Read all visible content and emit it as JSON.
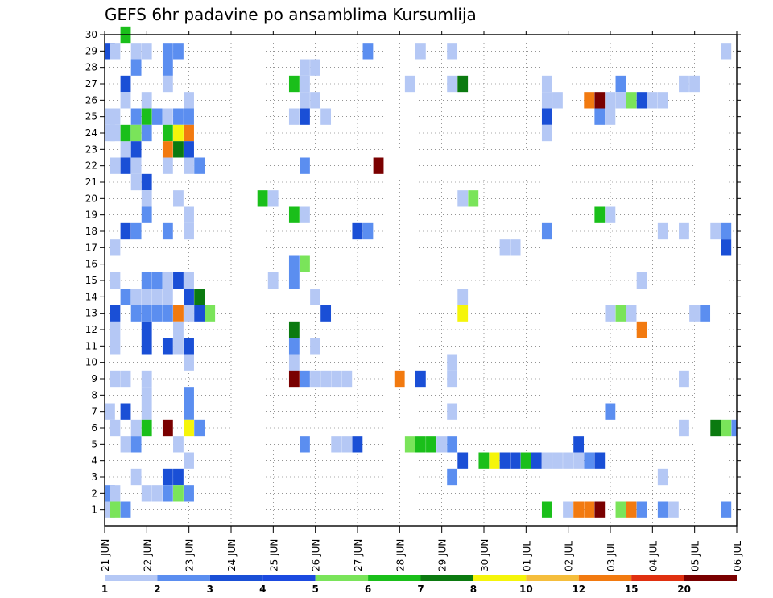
{
  "chart_data": {
    "type": "heatmap",
    "title": "GEFS 6hr padavine po ansamblima Kursumlija",
    "x_tick_labels": [
      "21 JUN",
      "22 JUN",
      "23 JUN",
      "24 JUN",
      "25 JUN",
      "26 JUN",
      "27 JUN",
      "28 JUN",
      "29 JUN",
      "30 JUN",
      "01 JUL",
      "02 JUL",
      "03 JUL",
      "04 JUL",
      "05 JUL",
      "06 JUL"
    ],
    "y_tick_labels": [
      "1",
      "2",
      "3",
      "4",
      "5",
      "6",
      "7",
      "8",
      "9",
      "10",
      "11",
      "12",
      "13",
      "14",
      "15",
      "16",
      "17",
      "18",
      "19",
      "20",
      "21",
      "22",
      "23",
      "24",
      "25",
      "26",
      "27",
      "28",
      "29",
      "30"
    ],
    "x_steps_per_day": 4,
    "x_range_steps": [
      0,
      60
    ],
    "y_range": [
      0,
      30
    ],
    "grid": "dotted",
    "legend": {
      "placement": "bottom",
      "thresholds": [
        "1",
        "2",
        "3",
        "4",
        "5",
        "6",
        "7",
        "8",
        "10",
        "12",
        "15",
        "20"
      ],
      "colors": [
        "#b5c8f5",
        "#5b8ef0",
        "#1a4fd6",
        "#1b4ae0",
        "#7ae45a",
        "#1abf1a",
        "#0b7a10",
        "#f5f50a",
        "#f5be3c",
        "#f27a10",
        "#e03010",
        "#7a0000"
      ]
    },
    "cells": [
      [
        1,
        1,
        1
      ],
      [
        1,
        2,
        2
      ],
      [
        1,
        24,
        1
      ],
      [
        1,
        25,
        1
      ],
      [
        1,
        29,
        3
      ],
      [
        1,
        7,
        1
      ],
      [
        2,
        1,
        5
      ],
      [
        2,
        2,
        1
      ],
      [
        2,
        6,
        1
      ],
      [
        2,
        11,
        1
      ],
      [
        2,
        12,
        1
      ],
      [
        2,
        22,
        1
      ],
      [
        2,
        29,
        1
      ],
      [
        2,
        24,
        1
      ],
      [
        2,
        25,
        1
      ],
      [
        2,
        17,
        1
      ],
      [
        2,
        15,
        1
      ],
      [
        2,
        13,
        3
      ],
      [
        2,
        9,
        1
      ],
      [
        3,
        30,
        6
      ],
      [
        3,
        27,
        3
      ],
      [
        3,
        26,
        1
      ],
      [
        3,
        23,
        1
      ],
      [
        3,
        22,
        3
      ],
      [
        3,
        18,
        3
      ],
      [
        3,
        9,
        1
      ],
      [
        3,
        7,
        3
      ],
      [
        3,
        5,
        1
      ],
      [
        3,
        24,
        6
      ],
      [
        3,
        14,
        2
      ],
      [
        3,
        1,
        2
      ],
      [
        4,
        29,
        1
      ],
      [
        4,
        25,
        2
      ],
      [
        4,
        24,
        5
      ],
      [
        4,
        23,
        3
      ],
      [
        4,
        22,
        1
      ],
      [
        4,
        21,
        1
      ],
      [
        4,
        18,
        2
      ],
      [
        4,
        14,
        1
      ],
      [
        4,
        13,
        2
      ],
      [
        4,
        6,
        1
      ],
      [
        4,
        5,
        2
      ],
      [
        4,
        3,
        1
      ],
      [
        4,
        28,
        2
      ],
      [
        5,
        25,
        6
      ],
      [
        5,
        24,
        2
      ],
      [
        5,
        21,
        3
      ],
      [
        5,
        20,
        1
      ],
      [
        5,
        19,
        2
      ],
      [
        5,
        15,
        2
      ],
      [
        5,
        14,
        1
      ],
      [
        5,
        13,
        2
      ],
      [
        5,
        12,
        3
      ],
      [
        5,
        11,
        3
      ],
      [
        5,
        9,
        1
      ],
      [
        5,
        8,
        1
      ],
      [
        5,
        7,
        1
      ],
      [
        5,
        6,
        6
      ],
      [
        5,
        29,
        1
      ],
      [
        5,
        26,
        1
      ],
      [
        5,
        2,
        1
      ],
      [
        6,
        25,
        2
      ],
      [
        6,
        14,
        1
      ],
      [
        6,
        13,
        2
      ],
      [
        6,
        15,
        2
      ],
      [
        6,
        2,
        1
      ],
      [
        7,
        29,
        2
      ],
      [
        7,
        27,
        1
      ],
      [
        7,
        25,
        1
      ],
      [
        7,
        24,
        6
      ],
      [
        7,
        23,
        10
      ],
      [
        7,
        22,
        1
      ],
      [
        7,
        18,
        2
      ],
      [
        7,
        15,
        1
      ],
      [
        7,
        14,
        1
      ],
      [
        7,
        13,
        2
      ],
      [
        7,
        11,
        3
      ],
      [
        7,
        6,
        20
      ],
      [
        7,
        3,
        3
      ],
      [
        7,
        2,
        2
      ],
      [
        7,
        28,
        2
      ],
      [
        8,
        25,
        2
      ],
      [
        8,
        24,
        8
      ],
      [
        8,
        23,
        7
      ],
      [
        8,
        20,
        1
      ],
      [
        8,
        15,
        3
      ],
      [
        8,
        13,
        10
      ],
      [
        8,
        12,
        1
      ],
      [
        8,
        11,
        1
      ],
      [
        8,
        3,
        3
      ],
      [
        8,
        5,
        1
      ],
      [
        8,
        2,
        5
      ],
      [
        8,
        29,
        2
      ],
      [
        9,
        26,
        1
      ],
      [
        9,
        25,
        2
      ],
      [
        9,
        24,
        10
      ],
      [
        9,
        23,
        3
      ],
      [
        9,
        22,
        1
      ],
      [
        9,
        19,
        1
      ],
      [
        9,
        18,
        1
      ],
      [
        9,
        15,
        1
      ],
      [
        9,
        14,
        3
      ],
      [
        9,
        13,
        1
      ],
      [
        9,
        11,
        3
      ],
      [
        9,
        10,
        1
      ],
      [
        9,
        8,
        2
      ],
      [
        9,
        7,
        2
      ],
      [
        9,
        6,
        8
      ],
      [
        9,
        4,
        1
      ],
      [
        9,
        2,
        2
      ],
      [
        10,
        22,
        2
      ],
      [
        10,
        14,
        7
      ],
      [
        10,
        13,
        3
      ],
      [
        10,
        6,
        2
      ],
      [
        11,
        13,
        5
      ],
      [
        16,
        20,
        6
      ],
      [
        17,
        20,
        1
      ],
      [
        17,
        15,
        1
      ],
      [
        19,
        27,
        6
      ],
      [
        19,
        25,
        1
      ],
      [
        19,
        19,
        6
      ],
      [
        19,
        16,
        2
      ],
      [
        19,
        15,
        2
      ],
      [
        19,
        12,
        7
      ],
      [
        19,
        11,
        2
      ],
      [
        19,
        10,
        1
      ],
      [
        19,
        9,
        15
      ],
      [
        20,
        28,
        1
      ],
      [
        20,
        27,
        1
      ],
      [
        20,
        26,
        1
      ],
      [
        20,
        25,
        3
      ],
      [
        20,
        22,
        2
      ],
      [
        20,
        19,
        1
      ],
      [
        20,
        16,
        5
      ],
      [
        20,
        9,
        2
      ],
      [
        20,
        5,
        2
      ],
      [
        21,
        28,
        1
      ],
      [
        21,
        26,
        1
      ],
      [
        21,
        14,
        1
      ],
      [
        21,
        11,
        1
      ],
      [
        21,
        9,
        1
      ],
      [
        22,
        25,
        1
      ],
      [
        22,
        13,
        3
      ],
      [
        22,
        9,
        1
      ],
      [
        23,
        9,
        1
      ],
      [
        23,
        5,
        1
      ],
      [
        24,
        9,
        1
      ],
      [
        24,
        5,
        1
      ],
      [
        25,
        18,
        3
      ],
      [
        25,
        5,
        3
      ],
      [
        26,
        29,
        2
      ],
      [
        26,
        18,
        2
      ],
      [
        27,
        22,
        15
      ],
      [
        29,
        9,
        10
      ],
      [
        30,
        27,
        1
      ],
      [
        30,
        5,
        5
      ],
      [
        31,
        29,
        1
      ],
      [
        31,
        9,
        3
      ],
      [
        31,
        5,
        6
      ],
      [
        32,
        5,
        6
      ],
      [
        33,
        5,
        1
      ],
      [
        34,
        29,
        1
      ],
      [
        34,
        27,
        1
      ],
      [
        34,
        10,
        1
      ],
      [
        34,
        9,
        1
      ],
      [
        34,
        7,
        1
      ],
      [
        34,
        5,
        2
      ],
      [
        34,
        3,
        2
      ],
      [
        35,
        27,
        7
      ],
      [
        35,
        20,
        1
      ],
      [
        35,
        14,
        1
      ],
      [
        35,
        13,
        8
      ],
      [
        35,
        4,
        3
      ],
      [
        36,
        20,
        5
      ],
      [
        37,
        4,
        6
      ],
      [
        38,
        4,
        8
      ],
      [
        39,
        17,
        1
      ],
      [
        39,
        4,
        3
      ],
      [
        40,
        17,
        1
      ],
      [
        40,
        4,
        3
      ],
      [
        41,
        4,
        6
      ],
      [
        42,
        4,
        3
      ],
      [
        43,
        27,
        1
      ],
      [
        43,
        26,
        1
      ],
      [
        43,
        25,
        3
      ],
      [
        43,
        24,
        1
      ],
      [
        43,
        18,
        2
      ],
      [
        43,
        4,
        1
      ],
      [
        43,
        1,
        6
      ],
      [
        44,
        26,
        1
      ],
      [
        44,
        4,
        1
      ],
      [
        45,
        4,
        1
      ],
      [
        45,
        1,
        1
      ],
      [
        46,
        5,
        3
      ],
      [
        46,
        4,
        1
      ],
      [
        46,
        1,
        10
      ],
      [
        47,
        26,
        10
      ],
      [
        47,
        4,
        2
      ],
      [
        47,
        1,
        10
      ],
      [
        48,
        26,
        15
      ],
      [
        48,
        25,
        2
      ],
      [
        48,
        19,
        6
      ],
      [
        48,
        4,
        3
      ],
      [
        48,
        1,
        20
      ],
      [
        49,
        26,
        1
      ],
      [
        49,
        25,
        1
      ],
      [
        49,
        19,
        1
      ],
      [
        49,
        13,
        1
      ],
      [
        49,
        7,
        2
      ],
      [
        50,
        27,
        2
      ],
      [
        50,
        26,
        1
      ],
      [
        50,
        13,
        5
      ],
      [
        50,
        1,
        5
      ],
      [
        51,
        26,
        5
      ],
      [
        51,
        13,
        1
      ],
      [
        51,
        1,
        10
      ],
      [
        52,
        26,
        3
      ],
      [
        52,
        15,
        1
      ],
      [
        52,
        12,
        10
      ],
      [
        52,
        1,
        2
      ],
      [
        53,
        26,
        1
      ],
      [
        54,
        26,
        1
      ],
      [
        54,
        18,
        1
      ],
      [
        54,
        3,
        1
      ],
      [
        54,
        1,
        2
      ],
      [
        55,
        1,
        1
      ],
      [
        56,
        27,
        1
      ],
      [
        56,
        18,
        1
      ],
      [
        56,
        9,
        1
      ],
      [
        56,
        6,
        1
      ],
      [
        57,
        27,
        1
      ],
      [
        57,
        13,
        1
      ],
      [
        58,
        13,
        2
      ],
      [
        59,
        6,
        7
      ],
      [
        59,
        18,
        1
      ],
      [
        60,
        29,
        1
      ],
      [
        60,
        18,
        2
      ],
      [
        60,
        17,
        3
      ],
      [
        60,
        6,
        5
      ],
      [
        60,
        1,
        2
      ],
      [
        61,
        6,
        2
      ],
      [
        62,
        29,
        1
      ],
      [
        62,
        9,
        3
      ],
      [
        62,
        6,
        1
      ],
      [
        62,
        1,
        1
      ],
      [
        63,
        29,
        2
      ],
      [
        63,
        9,
        2
      ],
      [
        63,
        6,
        6
      ]
    ]
  }
}
